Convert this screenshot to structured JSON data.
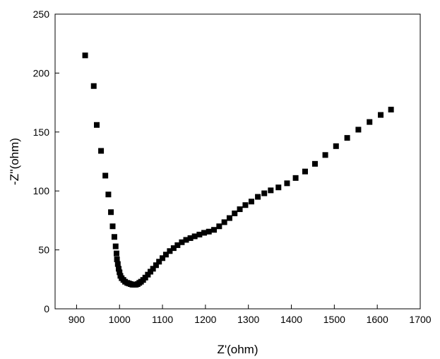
{
  "chart_data": {
    "type": "scatter",
    "xlabel": "Z'(ohm)",
    "ylabel": "-Z''(ohm)",
    "xlim": [
      850,
      1700
    ],
    "ylim": [
      0,
      250
    ],
    "xticks": [
      900,
      1000,
      1100,
      1200,
      1300,
      1400,
      1500,
      1600,
      1700
    ],
    "yticks": [
      0,
      50,
      100,
      150,
      200,
      250
    ],
    "grid": false,
    "marker": "square",
    "marker_color": "#000000",
    "points": [
      {
        "x": 920,
        "y": 215
      },
      {
        "x": 940,
        "y": 189
      },
      {
        "x": 947,
        "y": 156
      },
      {
        "x": 957,
        "y": 134
      },
      {
        "x": 967,
        "y": 113
      },
      {
        "x": 974,
        "y": 97
      },
      {
        "x": 980,
        "y": 82
      },
      {
        "x": 984,
        "y": 70
      },
      {
        "x": 988,
        "y": 61
      },
      {
        "x": 991,
        "y": 53
      },
      {
        "x": 993,
        "y": 47
      },
      {
        "x": 994,
        "y": 42
      },
      {
        "x": 996,
        "y": 38
      },
      {
        "x": 998,
        "y": 34
      },
      {
        "x": 1000,
        "y": 31
      },
      {
        "x": 1002,
        "y": 28
      },
      {
        "x": 1005,
        "y": 26
      },
      {
        "x": 1009,
        "y": 24.5
      },
      {
        "x": 1013,
        "y": 23
      },
      {
        "x": 1018,
        "y": 22
      },
      {
        "x": 1022,
        "y": 21.5
      },
      {
        "x": 1026,
        "y": 21
      },
      {
        "x": 1030,
        "y": 20.5
      },
      {
        "x": 1034,
        "y": 20.5
      },
      {
        "x": 1038,
        "y": 20.5
      },
      {
        "x": 1042,
        "y": 21
      },
      {
        "x": 1046,
        "y": 22
      },
      {
        "x": 1050,
        "y": 23
      },
      {
        "x": 1055,
        "y": 24.5
      },
      {
        "x": 1060,
        "y": 26.5
      },
      {
        "x": 1066,
        "y": 29
      },
      {
        "x": 1072,
        "y": 31.5
      },
      {
        "x": 1078,
        "y": 34
      },
      {
        "x": 1085,
        "y": 37
      },
      {
        "x": 1092,
        "y": 40
      },
      {
        "x": 1100,
        "y": 43
      },
      {
        "x": 1108,
        "y": 46
      },
      {
        "x": 1117,
        "y": 49
      },
      {
        "x": 1126,
        "y": 51.5
      },
      {
        "x": 1135,
        "y": 54
      },
      {
        "x": 1145,
        "y": 56.5
      },
      {
        "x": 1155,
        "y": 58.5
      },
      {
        "x": 1165,
        "y": 60
      },
      {
        "x": 1175,
        "y": 61.5
      },
      {
        "x": 1186,
        "y": 63
      },
      {
        "x": 1197,
        "y": 64.5
      },
      {
        "x": 1208,
        "y": 65.5
      },
      {
        "x": 1220,
        "y": 67
      },
      {
        "x": 1232,
        "y": 70
      },
      {
        "x": 1244,
        "y": 73.5
      },
      {
        "x": 1256,
        "y": 77
      },
      {
        "x": 1268,
        "y": 81
      },
      {
        "x": 1280,
        "y": 84.5
      },
      {
        "x": 1293,
        "y": 88
      },
      {
        "x": 1307,
        "y": 91
      },
      {
        "x": 1322,
        "y": 95
      },
      {
        "x": 1337,
        "y": 98
      },
      {
        "x": 1352,
        "y": 100.5
      },
      {
        "x": 1370,
        "y": 103
      },
      {
        "x": 1390,
        "y": 106.5
      },
      {
        "x": 1410,
        "y": 111
      },
      {
        "x": 1432,
        "y": 116.5
      },
      {
        "x": 1455,
        "y": 123
      },
      {
        "x": 1479,
        "y": 130.5
      },
      {
        "x": 1504,
        "y": 138
      },
      {
        "x": 1530,
        "y": 145
      },
      {
        "x": 1556,
        "y": 152
      },
      {
        "x": 1582,
        "y": 158.5
      },
      {
        "x": 1608,
        "y": 164.5
      },
      {
        "x": 1632,
        "y": 169
      }
    ]
  }
}
